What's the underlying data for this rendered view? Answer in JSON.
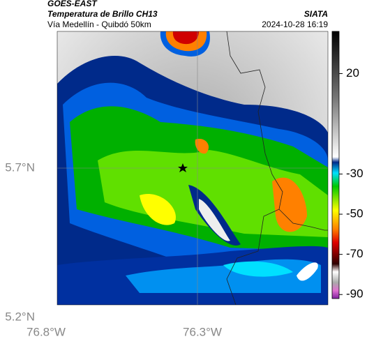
{
  "header": {
    "satellite": "GOES-EAST",
    "product": "Temperatura de Brillo CH13",
    "region": "Vía Medellín - Quibdó 50km",
    "source": "SIATA",
    "datetime": "2024-10-28 16:19"
  },
  "axes": {
    "lat_labels": [
      "5.7°N",
      "5.2°N"
    ],
    "lon_labels": [
      "76.8°W",
      "76.3°W"
    ]
  },
  "colorbar": {
    "lim": [
      -92,
      41
    ],
    "ticks": [
      20,
      -30,
      -50,
      -70,
      -90
    ]
  }
}
